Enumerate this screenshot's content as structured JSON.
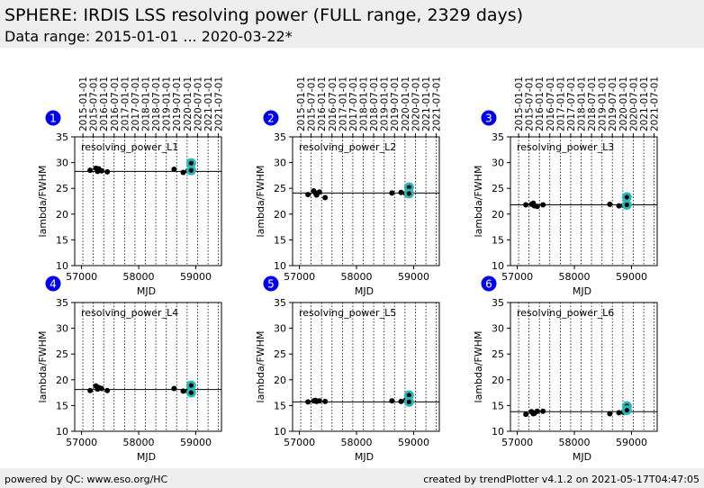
{
  "header": {
    "title": "SPHERE: IRDIS LSS resolving power (FULL range, 2329 days)",
    "subtitle": "Data range: 2015-01-01 ... 2020-03-22*"
  },
  "footer": {
    "left": "powered by QC: www.eso.org/HC",
    "right": "created by trendPlotter v4.1.2 on 2021-05-17T04:47:05"
  },
  "colors": {
    "points": "#000000",
    "highlight": "#2ab7b7",
    "badge": "#0000ee",
    "reference_line": "#000000",
    "header_bg": "#eeeeee"
  },
  "chart_data": [
    {
      "type": "scatter",
      "badge": "1",
      "label": "resolving_power_L1",
      "xlabel": "MJD",
      "ylabel": "lambda/FWHM",
      "xlim": [
        56880,
        59450
      ],
      "ylim": [
        10,
        35
      ],
      "xticks": [
        57000,
        58000,
        59000
      ],
      "yticks": [
        10,
        15,
        20,
        25,
        30,
        35
      ],
      "date_ticks": [
        "2015-01-01",
        "2015-07-01",
        "2016-01-01",
        "2016-07-01",
        "2017-01-01",
        "2017-07-01",
        "2018-01-01",
        "2018-07-01",
        "2019-01-01",
        "2019-07-01",
        "2020-01-01",
        "2020-07-01",
        "2021-01-01",
        "2021-07-01"
      ],
      "reference": 28.3,
      "points": [
        [
          57150,
          28.5
        ],
        [
          57250,
          28.9
        ],
        [
          57280,
          28.3
        ],
        [
          57300,
          28.8
        ],
        [
          57350,
          28.4
        ],
        [
          57450,
          28.2
        ],
        [
          58620,
          28.7
        ],
        [
          58780,
          28.1
        ],
        [
          58860,
          28.4
        ]
      ],
      "highlighted": [
        [
          58920,
          29.9
        ],
        [
          58920,
          28.5
        ]
      ]
    },
    {
      "type": "scatter",
      "badge": "2",
      "label": "resolving_power_L2",
      "xlabel": "MJD",
      "ylabel": "lambda/FWHM",
      "xlim": [
        56880,
        59450
      ],
      "ylim": [
        10,
        35
      ],
      "xticks": [
        57000,
        58000,
        59000
      ],
      "yticks": [
        10,
        15,
        20,
        25,
        30,
        35
      ],
      "date_ticks": [
        "2015-01-01",
        "2015-07-01",
        "2016-01-01",
        "2016-07-01",
        "2017-01-01",
        "2017-07-01",
        "2018-01-01",
        "2018-07-01",
        "2019-01-01",
        "2019-07-01",
        "2020-01-01",
        "2020-07-01",
        "2021-01-01",
        "2021-07-01"
      ],
      "reference": 24.1,
      "points": [
        [
          57150,
          23.8
        ],
        [
          57250,
          24.5
        ],
        [
          57280,
          24.1
        ],
        [
          57300,
          23.7
        ],
        [
          57350,
          24.3
        ],
        [
          57450,
          23.2
        ],
        [
          58620,
          24.1
        ],
        [
          58780,
          24.2
        ],
        [
          58860,
          24.0
        ]
      ],
      "highlighted": [
        [
          58920,
          25.2
        ],
        [
          58920,
          24.0
        ]
      ]
    },
    {
      "type": "scatter",
      "badge": "3",
      "label": "resolving_power_L3",
      "xlabel": "MJD",
      "ylabel": "lambda/FWHM",
      "xlim": [
        56880,
        59450
      ],
      "ylim": [
        10,
        35
      ],
      "xticks": [
        57000,
        58000,
        59000
      ],
      "yticks": [
        10,
        15,
        20,
        25,
        30,
        35
      ],
      "date_ticks": [
        "2015-01-01",
        "2015-07-01",
        "2016-01-01",
        "2016-07-01",
        "2017-01-01",
        "2017-07-01",
        "2018-01-01",
        "2018-07-01",
        "2019-01-01",
        "2019-07-01",
        "2020-01-01",
        "2020-07-01",
        "2021-01-01",
        "2021-07-01"
      ],
      "reference": 21.8,
      "points": [
        [
          57150,
          21.8
        ],
        [
          57250,
          21.9
        ],
        [
          57280,
          22.1
        ],
        [
          57300,
          21.6
        ],
        [
          57350,
          21.5
        ],
        [
          57450,
          21.8
        ],
        [
          58620,
          21.9
        ],
        [
          58780,
          21.6
        ],
        [
          58860,
          21.7
        ]
      ],
      "highlighted": [
        [
          58920,
          23.3
        ],
        [
          58920,
          21.8
        ]
      ]
    },
    {
      "type": "scatter",
      "badge": "4",
      "label": "resolving_power_L4",
      "xlabel": "MJD",
      "ylabel": "lambda/FWHM",
      "xlim": [
        56880,
        59450
      ],
      "ylim": [
        10,
        35
      ],
      "xticks": [
        57000,
        58000,
        59000
      ],
      "yticks": [
        10,
        15,
        20,
        25,
        30,
        35
      ],
      "date_ticks": [],
      "reference": 18.1,
      "points": [
        [
          57150,
          17.9
        ],
        [
          57250,
          18.8
        ],
        [
          57280,
          18.2
        ],
        [
          57300,
          18.5
        ],
        [
          57350,
          18.3
        ],
        [
          57450,
          17.9
        ],
        [
          58620,
          18.3
        ],
        [
          58780,
          17.8
        ],
        [
          58860,
          17.8
        ]
      ],
      "highlighted": [
        [
          58920,
          18.9
        ],
        [
          58920,
          17.5
        ]
      ]
    },
    {
      "type": "scatter",
      "badge": "5",
      "label": "resolving_power_L5",
      "xlabel": "MJD",
      "ylabel": "lambda/FWHM",
      "xlim": [
        56880,
        59450
      ],
      "ylim": [
        10,
        35
      ],
      "xticks": [
        57000,
        58000,
        59000
      ],
      "yticks": [
        10,
        15,
        20,
        25,
        30,
        35
      ],
      "date_ticks": [],
      "reference": 15.7,
      "points": [
        [
          57150,
          15.7
        ],
        [
          57250,
          15.9
        ],
        [
          57280,
          16.0
        ],
        [
          57300,
          15.8
        ],
        [
          57350,
          15.9
        ],
        [
          57450,
          15.8
        ],
        [
          58620,
          15.9
        ],
        [
          58780,
          15.8
        ],
        [
          58860,
          16.0
        ]
      ],
      "highlighted": [
        [
          58920,
          17.0
        ],
        [
          58920,
          15.7
        ]
      ]
    },
    {
      "type": "scatter",
      "badge": "6",
      "label": "resolving_power_L6",
      "xlabel": "MJD",
      "ylabel": "lambda/FWHM",
      "xlim": [
        56880,
        59450
      ],
      "ylim": [
        10,
        35
      ],
      "xticks": [
        57000,
        58000,
        59000
      ],
      "yticks": [
        10,
        15,
        20,
        25,
        30,
        35
      ],
      "date_ticks": [],
      "reference": 13.8,
      "points": [
        [
          57150,
          13.3
        ],
        [
          57250,
          13.8
        ],
        [
          57280,
          13.4
        ],
        [
          57300,
          13.5
        ],
        [
          57350,
          13.9
        ],
        [
          57450,
          13.9
        ],
        [
          58620,
          13.4
        ],
        [
          58780,
          13.6
        ],
        [
          58860,
          13.7
        ]
      ],
      "highlighted": [
        [
          58920,
          14.9
        ],
        [
          58920,
          14.1
        ]
      ]
    }
  ]
}
